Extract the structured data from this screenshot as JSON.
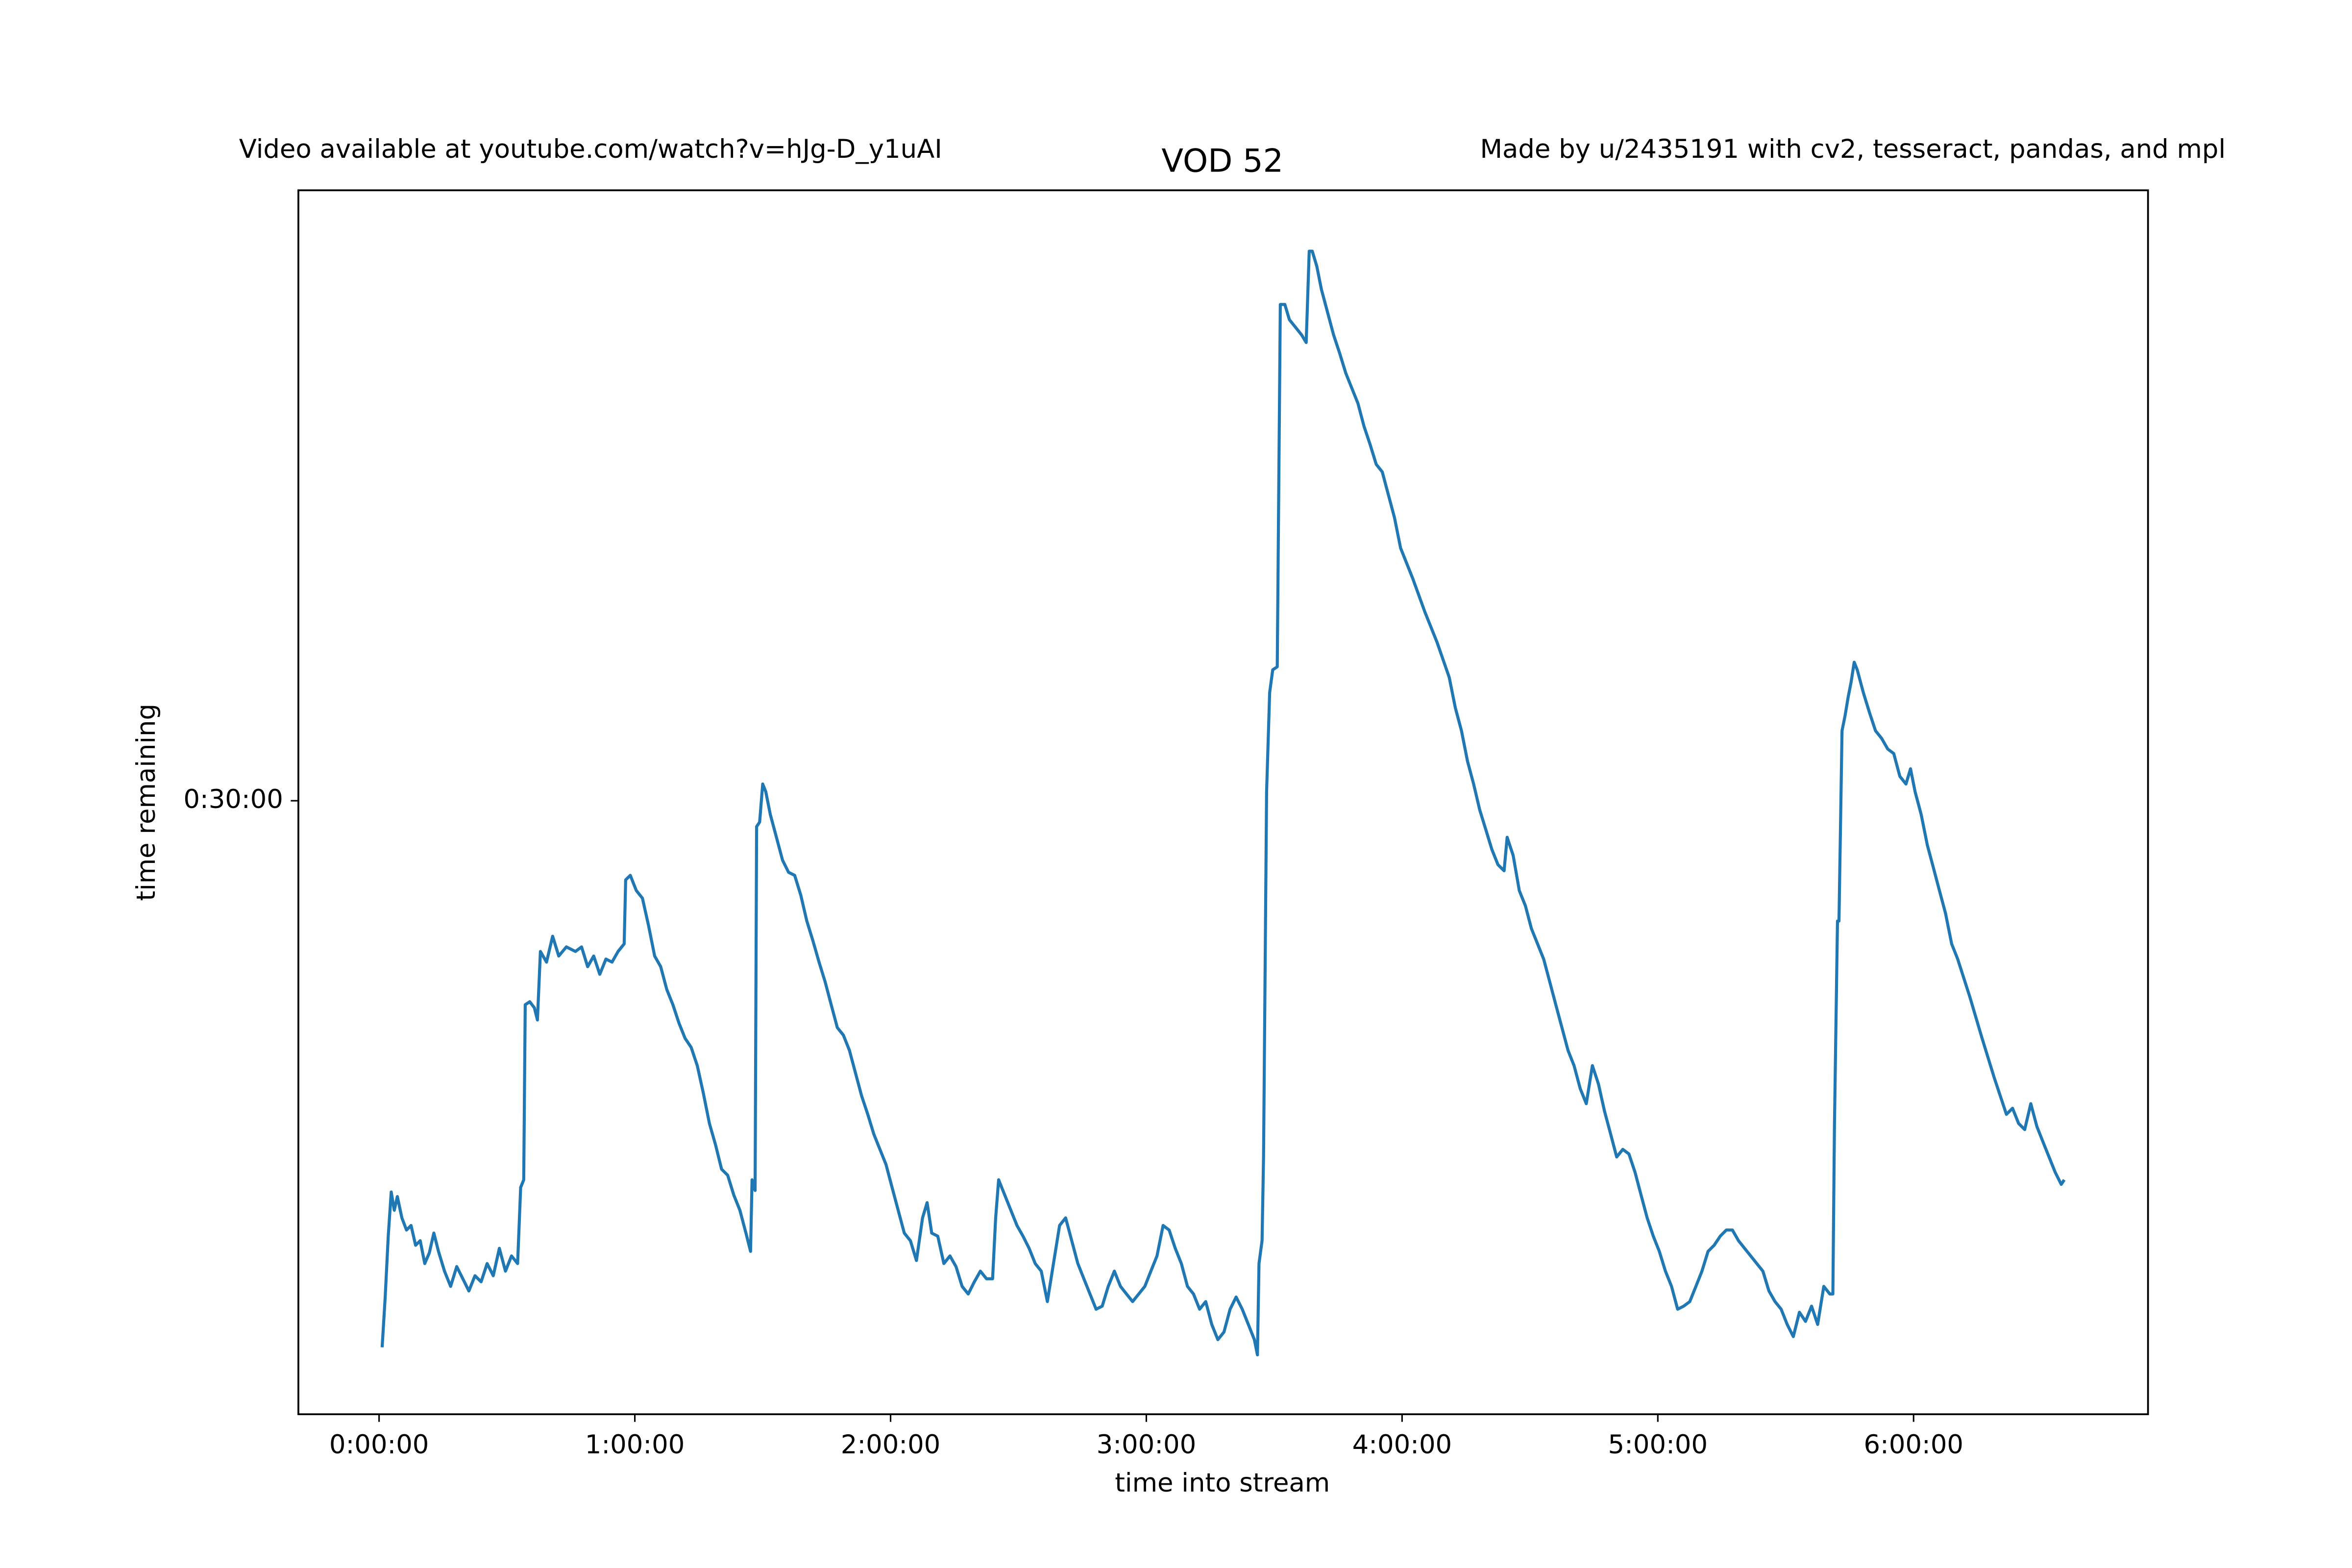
{
  "chart_data": {
    "type": "line",
    "title": "VOD 52",
    "left_note": "Video available at youtube.com/watch?v=hJg-D_y1uAI",
    "right_note": "Made by u/2435191 with cv2, tesseract, pandas, and mpl",
    "x_label": "time into stream",
    "y_label": "time remaining",
    "xlim": [
      -1136,
      24900
    ],
    "ylim": [
      188,
      3404
    ],
    "xticks": [
      {
        "value": 0,
        "label": "0:00:00"
      },
      {
        "value": 3600,
        "label": "1:00:00"
      },
      {
        "value": 7200,
        "label": "2:00:00"
      },
      {
        "value": 10800,
        "label": "3:00:00"
      },
      {
        "value": 14400,
        "label": "4:00:00"
      },
      {
        "value": 18000,
        "label": "5:00:00"
      },
      {
        "value": 21600,
        "label": "6:00:00"
      }
    ],
    "yticks": [
      {
        "value": 1800,
        "label": "0:30:00"
      }
    ],
    "x": [
      43,
      86,
      129,
      171,
      214,
      257,
      321,
      386,
      450,
      514,
      579,
      643,
      707,
      771,
      836,
      921,
      1007,
      1093,
      1179,
      1264,
      1350,
      1436,
      1521,
      1607,
      1693,
      1779,
      1864,
      1950,
      1993,
      2036,
      2057,
      2121,
      2186,
      2229,
      2271,
      2357,
      2443,
      2529,
      2636,
      2764,
      2850,
      2936,
      3021,
      3107,
      3193,
      3279,
      3364,
      3450,
      3471,
      3536,
      3621,
      3707,
      3793,
      3879,
      3964,
      4050,
      4136,
      4221,
      4307,
      4393,
      4479,
      4564,
      4650,
      4736,
      4821,
      4907,
      4993,
      5079,
      5164,
      5229,
      5250,
      5293,
      5314,
      5357,
      5400,
      5443,
      5507,
      5593,
      5679,
      5764,
      5850,
      5936,
      6021,
      6107,
      6193,
      6279,
      6364,
      6450,
      6536,
      6621,
      6707,
      6793,
      6879,
      6964,
      7050,
      7136,
      7221,
      7307,
      7393,
      7479,
      7564,
      7650,
      7714,
      7779,
      7864,
      7950,
      8036,
      8121,
      8207,
      8293,
      8379,
      8464,
      8550,
      8636,
      8679,
      8721,
      8807,
      8893,
      8979,
      9064,
      9150,
      9236,
      9321,
      9407,
      9493,
      9579,
      9664,
      9750,
      9836,
      9921,
      10007,
      10093,
      10179,
      10264,
      10350,
      10436,
      10521,
      10607,
      10693,
      10779,
      10864,
      10950,
      11036,
      11121,
      11207,
      11293,
      11379,
      11464,
      11550,
      11636,
      11721,
      11807,
      11893,
      11979,
      12064,
      12150,
      12236,
      12321,
      12364,
      12386,
      12429,
      12450,
      12493,
      12536,
      12579,
      12643,
      12686,
      12750,
      12814,
      12900,
      12986,
      13050,
      13093,
      13136,
      13200,
      13264,
      13350,
      13436,
      13521,
      13607,
      13693,
      13779,
      13864,
      13950,
      14036,
      14121,
      14207,
      14293,
      14379,
      14550,
      14721,
      14893,
      15064,
      15150,
      15236,
      15321,
      15407,
      15493,
      15579,
      15664,
      15750,
      15836,
      15879,
      15964,
      16050,
      16136,
      16221,
      16307,
      16393,
      16479,
      16564,
      16650,
      16736,
      16821,
      16907,
      16993,
      17079,
      17164,
      17250,
      17336,
      17421,
      17507,
      17593,
      17679,
      17764,
      17850,
      17936,
      18021,
      18107,
      18193,
      18279,
      18364,
      18450,
      18536,
      18621,
      18707,
      18793,
      18879,
      18964,
      19050,
      19136,
      19221,
      19307,
      19393,
      19479,
      19564,
      19650,
      19736,
      19821,
      19907,
      19993,
      20079,
      20164,
      20250,
      20336,
      20421,
      20464,
      20486,
      20529,
      20550,
      20593,
      20636,
      20679,
      20721,
      20764,
      20807,
      20893,
      20979,
      21064,
      21150,
      21236,
      21321,
      21407,
      21493,
      21557,
      21621,
      21707,
      21793,
      21879,
      21964,
      22050,
      22136,
      22221,
      22393,
      22564,
      22736,
      22907,
      22993,
      23079,
      23164,
      23250,
      23336,
      23421,
      23507,
      23593,
      23679,
      23721
    ],
    "series": [
      {
        "color": "#1f77b4",
        "values": [
          364,
          496,
          656,
          772,
          724,
          760,
          704,
          672,
          684,
          632,
          644,
          584,
          612,
          664,
          616,
          564,
          524,
          576,
          544,
          512,
          552,
          536,
          584,
          552,
          624,
          564,
          604,
          584,
          784,
          804,
          1264,
          1272,
          1256,
          1224,
          1404,
          1376,
          1444,
          1392,
          1416,
          1404,
          1416,
          1364,
          1392,
          1344,
          1384,
          1376,
          1404,
          1424,
          1592,
          1604,
          1564,
          1544,
          1472,
          1392,
          1364,
          1304,
          1264,
          1216,
          1176,
          1152,
          1104,
          1032,
          952,
          896,
          832,
          816,
          764,
          724,
          664,
          616,
          804,
          776,
          1732,
          1744,
          1844,
          1824,
          1764,
          1704,
          1644,
          1612,
          1604,
          1552,
          1484,
          1432,
          1376,
          1324,
          1264,
          1204,
          1184,
          1144,
          1084,
          1024,
          976,
          924,
          884,
          844,
          784,
          724,
          664,
          644,
          592,
          704,
          744,
          664,
          656,
          584,
          604,
          576,
          524,
          504,
          536,
          564,
          544,
          544,
          704,
          804,
          764,
          724,
          684,
          656,
          624,
          584,
          564,
          484,
          584,
          684,
          704,
          644,
          584,
          544,
          504,
          464,
          472,
          524,
          564,
          524,
          504,
          484,
          504,
          524,
          564,
          604,
          684,
          672,
          624,
          584,
          524,
          504,
          464,
          484,
          424,
          384,
          404,
          464,
          496,
          464,
          424,
          384,
          344,
          584,
          644,
          864,
          1824,
          2084,
          2144,
          2152,
          3104,
          3104,
          3064,
          3044,
          3024,
          3004,
          3244,
          3244,
          3204,
          3144,
          3084,
          3024,
          2976,
          2924,
          2884,
          2844,
          2784,
          2736,
          2684,
          2664,
          2604,
          2544,
          2464,
          2384,
          2296,
          2216,
          2124,
          2044,
          1984,
          1904,
          1844,
          1776,
          1724,
          1672,
          1632,
          1616,
          1704,
          1656,
          1564,
          1524,
          1464,
          1424,
          1384,
          1324,
          1264,
          1204,
          1144,
          1104,
          1044,
          1004,
          1104,
          1056,
          984,
          924,
          864,
          884,
          872,
          824,
          764,
          704,
          656,
          616,
          564,
          524,
          464,
          472,
          484,
          524,
          564,
          616,
          632,
          656,
          672,
          672,
          644,
          624,
          604,
          584,
          564,
          512,
          484,
          464,
          424,
          392,
          456,
          432,
          472,
          424,
          524,
          504,
          504,
          944,
          1484,
          1484,
          1984,
          2024,
          2072,
          2112,
          2164,
          2144,
          2084,
          2032,
          1984,
          1964,
          1936,
          1924,
          1864,
          1844,
          1884,
          1824,
          1764,
          1684,
          1624,
          1564,
          1504,
          1424,
          1384,
          1284,
          1176,
          1072,
          976,
          992,
          952,
          936,
          1004,
          944,
          904,
          864,
          824,
          792,
          804
        ]
      }
    ]
  }
}
